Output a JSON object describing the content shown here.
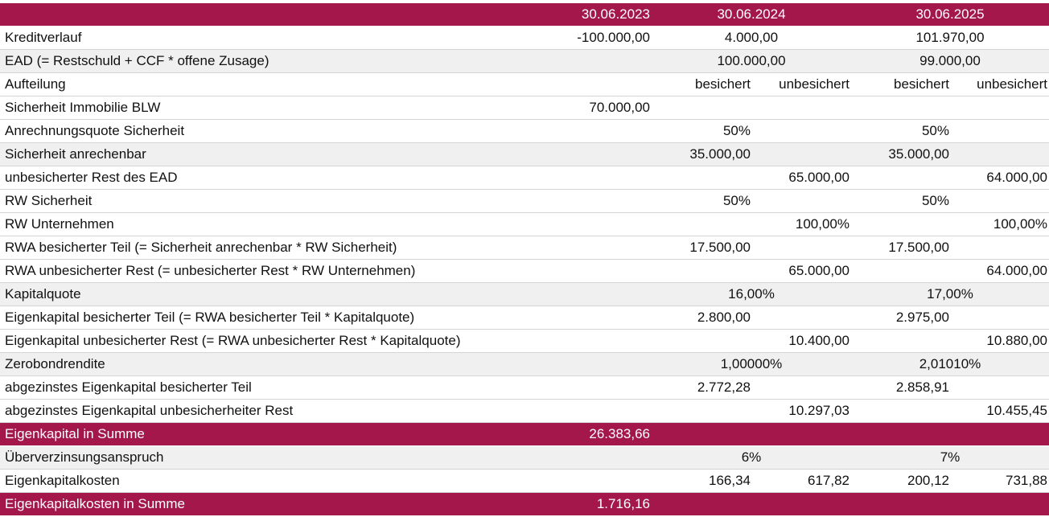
{
  "table": {
    "header": {
      "cells": [
        "30.06.2023",
        "30.06.2024",
        "30.06.2025"
      ]
    },
    "rows": [
      {
        "label": "Kreditverlauf",
        "cells": [
          "-100.000,00",
          "4.000,00",
          "101.970,00"
        ]
      },
      {
        "label": "EAD (= Restschuld + CCF * offene Zusage)",
        "cells": [
          "100.000,00",
          "99.000,00"
        ]
      },
      {
        "label": "Aufteilung",
        "cells": [
          "besichert",
          "unbesichert",
          "besichert",
          "unbesichert"
        ]
      },
      {
        "label": "Sicherheit Immobilie BLW",
        "cells": [
          "70.000,00"
        ]
      },
      {
        "label": "Anrechnungsquote Sicherheit",
        "cells": [
          "50%",
          "50%"
        ]
      },
      {
        "label": "Sicherheit anrechenbar",
        "cells": [
          "35.000,00",
          "35.000,00"
        ]
      },
      {
        "label": "unbesicherter Rest des EAD",
        "cells": [
          "65.000,00",
          "64.000,00"
        ]
      },
      {
        "label": "RW Sicherheit",
        "cells": [
          "50%",
          "50%"
        ]
      },
      {
        "label": "RW Unternehmen",
        "cells": [
          "100,00%",
          "100,00%"
        ]
      },
      {
        "label": "RWA besicherter Teil (= Sicherheit anrechenbar * RW Sicherheit)",
        "cells": [
          "17.500,00",
          "17.500,00"
        ]
      },
      {
        "label": "RWA unbesicherter Rest (= unbesicherter Rest * RW Unternehmen)",
        "cells": [
          "65.000,00",
          "64.000,00"
        ]
      },
      {
        "label": "Kapitalquote",
        "cells": [
          "16,00%",
          "17,00%"
        ]
      },
      {
        "label": "Eigenkapital besicherter Teil (= RWA besicherter Teil * Kapitalquote)",
        "cells": [
          "2.800,00",
          "2.975,00"
        ]
      },
      {
        "label": "Eigenkapital unbesicherter Rest (= RWA unbesicherter Rest * Kapitalquote)",
        "cells": [
          "10.400,00",
          "10.880,00"
        ]
      },
      {
        "label": "Zerobondrendite",
        "cells": [
          "1,00000%",
          "2,01010%"
        ]
      },
      {
        "label": "abgezinstes Eigenkapital besicherter Teil",
        "cells": [
          "2.772,28",
          "2.858,91"
        ]
      },
      {
        "label": "abgezinstes Eigenkapital unbesicherheiter Rest",
        "cells": [
          "10.297,03",
          "10.455,45"
        ]
      },
      {
        "label": "Eigenkapital in Summe",
        "cells": [
          "26.383,66"
        ]
      },
      {
        "label": "Überverzinsungsanspruch",
        "cells": [
          "6%",
          "7%"
        ]
      },
      {
        "label": "Eigenkapitalkosten",
        "cells": [
          "166,34",
          "617,82",
          "200,12",
          "731,88"
        ]
      },
      {
        "label": "Eigenkapitalkosten in Summe",
        "cells": [
          "1.716,16"
        ]
      }
    ]
  }
}
